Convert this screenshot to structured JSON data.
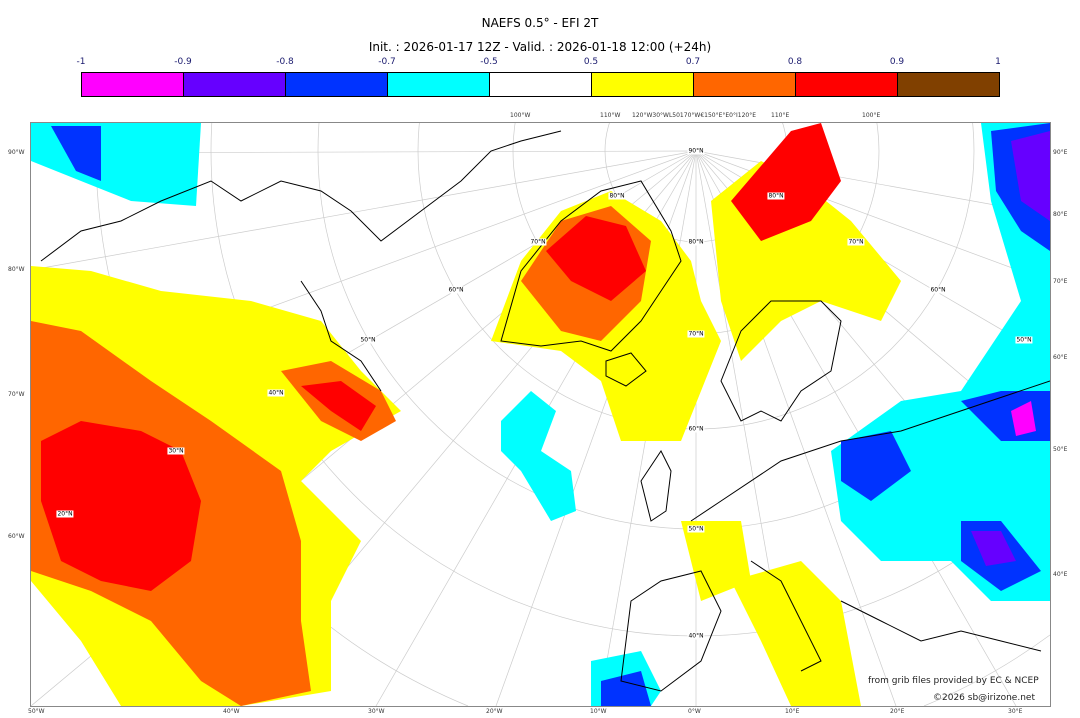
{
  "title": "NAEFS 0.5° - EFI 2T",
  "subtitle": "Init. : 2026-01-17 12Z - Valid. : 2026-01-18 12:00 (+24h)",
  "colorbar": {
    "ticks": [
      "-1",
      "-0.9",
      "-0.8",
      "-0.7",
      "-0.5",
      "0.5",
      "0.7",
      "0.8",
      "0.9",
      "1"
    ],
    "colors": [
      "#ff00ff",
      "#6600ff",
      "#0033ff",
      "#00ffff",
      "#ffffff",
      "#ffff00",
      "#ff6600",
      "#ff0000",
      "#804000"
    ]
  },
  "axes": {
    "left": [
      "90°W",
      "80°W",
      "70°W",
      "60°W"
    ],
    "right": [
      "90°E",
      "80°E",
      "70°E",
      "60°E",
      "50°E",
      "40°E"
    ],
    "bottom": [
      "50°W",
      "40°W",
      "30°W",
      "20°W",
      "10°W",
      "0°W",
      "10°E",
      "20°E",
      "30°E"
    ],
    "top": [
      "100°W",
      "110°W",
      "120°W30°WL50170°W€150°E°E0°I120°E",
      "110°E",
      "100°E"
    ]
  },
  "lat_labels": [
    "90°N",
    "80°N",
    "70°N",
    "60°N",
    "50°N",
    "40°N",
    "80°N",
    "70°N",
    "60°N",
    "50°N",
    "40°N",
    "30°N",
    "20°N",
    "80°N",
    "70°N",
    "60°N",
    "50°N"
  ],
  "credits": {
    "source": "from grib files provided by EC & NCEP",
    "copyright": "©2026 sb@irizone.net"
  }
}
